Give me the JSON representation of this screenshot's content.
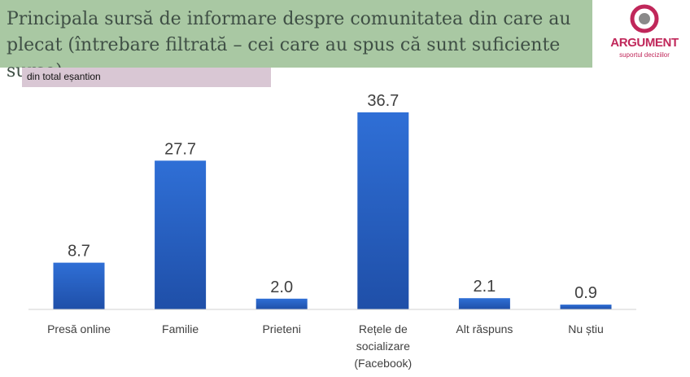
{
  "header": {
    "title": "Principala sursă de informare despre comunitatea din care au\nplecat (întrebare filtrată – cei care au spus că sunt suficiente surse)",
    "subtitle": "din total eșantion"
  },
  "logo": {
    "name": "ARGUMENT",
    "tagline": "suportul deciziilor",
    "color": "#c0275a"
  },
  "chart_data": {
    "type": "bar",
    "title": "Principala sursă de informare despre comunitatea din care au plecat (întrebare filtrată – cei care au spus că sunt suficiente surse)",
    "subtitle": "din total eșantion",
    "categories": [
      [
        "Presă online"
      ],
      [
        "Familie"
      ],
      [
        "Prieteni"
      ],
      [
        "Rețele de",
        "socializare",
        "(Facebook)"
      ],
      [
        "Alt răspuns"
      ],
      [
        "Nu știu"
      ]
    ],
    "values": [
      8.7,
      27.7,
      2.0,
      36.7,
      2.1,
      0.9
    ],
    "value_labels": [
      "8.7",
      "27.7",
      "2.0",
      "36.7",
      "2.1",
      "0.9"
    ],
    "xlabel": "",
    "ylabel": "",
    "ylim": [
      0,
      36.7
    ],
    "grid": false,
    "bar_color_top": "#2f6fd6",
    "bar_color_bottom": "#1f4fa8"
  }
}
